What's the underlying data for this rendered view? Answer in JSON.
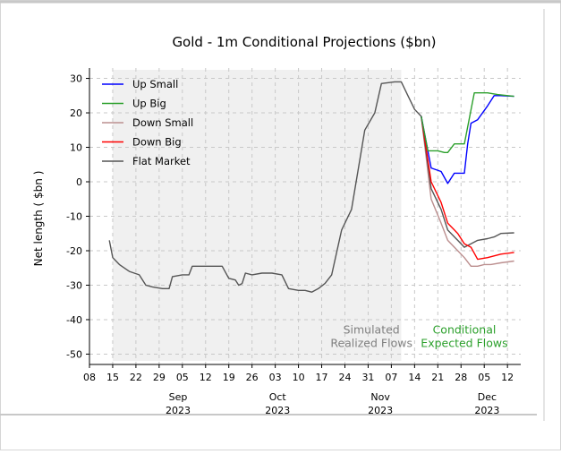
{
  "chart_data": {
    "type": "line",
    "title": "Gold - 1m Conditional Projections ($bn)",
    "ylabel": "Net length ( $bn )",
    "ylim": [
      -53,
      33
    ],
    "yticks": [
      30,
      20,
      10,
      0,
      -10,
      -20,
      -30,
      -40,
      -50
    ],
    "xlim": [
      "2023-08-08",
      "2023-12-16"
    ],
    "grid": true,
    "legend_position": "top-left",
    "x_tick_dates": [
      "2023-08-08",
      "2023-08-15",
      "2023-08-22",
      "2023-08-29",
      "2023-09-05",
      "2023-09-12",
      "2023-09-19",
      "2023-09-26",
      "2023-10-03",
      "2023-10-10",
      "2023-10-17",
      "2023-10-24",
      "2023-10-31",
      "2023-11-07",
      "2023-11-14",
      "2023-11-21",
      "2023-11-28",
      "2023-12-05",
      "2023-12-12"
    ],
    "x_tick_labels": [
      "08",
      "15",
      "22",
      "29",
      "05",
      "12",
      "19",
      "26",
      "03",
      "10",
      "17",
      "24",
      "31",
      "07",
      "14",
      "21",
      "28",
      "05",
      "12"
    ],
    "month_labels": [
      {
        "date": "2023-09-01",
        "month": "Sep",
        "year": "2023"
      },
      {
        "date": "2023-10-01",
        "month": "Oct",
        "year": "2023"
      },
      {
        "date": "2023-11-01",
        "month": "Nov",
        "year": "2023"
      },
      {
        "date": "2023-12-01",
        "month": "Dec",
        "year": "2023"
      }
    ],
    "realized_region": {
      "start": "2023-08-15",
      "end": "2023-11-10",
      "color": "#f0f0f0"
    },
    "annotations": [
      {
        "text_lines": [
          "Simulated",
          "Realized Flows"
        ],
        "date": "2023-11-01",
        "y": -44,
        "color": "#808080"
      },
      {
        "text_lines": [
          "Conditional",
          "Expected Flows"
        ],
        "date": "2023-11-29",
        "y": -44,
        "color": "#2ca02c"
      }
    ],
    "historical": {
      "name": "Flat Market",
      "color": "#555555",
      "points": [
        [
          "2023-08-14",
          -17
        ],
        [
          "2023-08-15",
          -22
        ],
        [
          "2023-08-17",
          -24
        ],
        [
          "2023-08-20",
          -26
        ],
        [
          "2023-08-23",
          -27
        ],
        [
          "2023-08-25",
          -30
        ],
        [
          "2023-08-27",
          -30.5
        ],
        [
          "2023-08-30",
          -31
        ],
        [
          "2023-09-01",
          -31
        ],
        [
          "2023-09-02",
          -27.5
        ],
        [
          "2023-09-05",
          -27
        ],
        [
          "2023-09-07",
          -27
        ],
        [
          "2023-09-08",
          -24.5
        ],
        [
          "2023-09-11",
          -24.5
        ],
        [
          "2023-09-14",
          -24.5
        ],
        [
          "2023-09-17",
          -24.5
        ],
        [
          "2023-09-19",
          -28
        ],
        [
          "2023-09-21",
          -28.5
        ],
        [
          "2023-09-22",
          -30
        ],
        [
          "2023-09-23",
          -29.5
        ],
        [
          "2023-09-24",
          -26.5
        ],
        [
          "2023-09-26",
          -27
        ],
        [
          "2023-09-29",
          -26.5
        ],
        [
          "2023-10-02",
          -26.5
        ],
        [
          "2023-10-05",
          -27
        ],
        [
          "2023-10-07",
          -31
        ],
        [
          "2023-10-10",
          -31.5
        ],
        [
          "2023-10-12",
          -31.5
        ],
        [
          "2023-10-14",
          -32
        ],
        [
          "2023-10-16",
          -31
        ],
        [
          "2023-10-18",
          -29.5
        ],
        [
          "2023-10-20",
          -27
        ],
        [
          "2023-10-23",
          -14
        ],
        [
          "2023-10-26",
          -8
        ],
        [
          "2023-10-30",
          15
        ],
        [
          "2023-11-02",
          20
        ],
        [
          "2023-11-04",
          28.5
        ],
        [
          "2023-11-08",
          29
        ],
        [
          "2023-11-10",
          29
        ],
        [
          "2023-11-12",
          25
        ],
        [
          "2023-11-14",
          21
        ],
        [
          "2023-11-16",
          19
        ]
      ]
    },
    "series": [
      {
        "name": "Up Small",
        "color": "#0000ff",
        "points": [
          [
            "2023-11-16",
            19
          ],
          [
            "2023-11-19",
            4
          ],
          [
            "2023-11-22",
            3
          ],
          [
            "2023-11-24",
            -0.5
          ],
          [
            "2023-11-26",
            2.5
          ],
          [
            "2023-11-29",
            2.5
          ],
          [
            "2023-11-30",
            11
          ],
          [
            "2023-12-01",
            17
          ],
          [
            "2023-12-03",
            18
          ],
          [
            "2023-12-06",
            22
          ],
          [
            "2023-12-08",
            25
          ],
          [
            "2023-12-10",
            25
          ],
          [
            "2023-12-14",
            24.8
          ]
        ]
      },
      {
        "name": "Up Big",
        "color": "#2ca02c",
        "points": [
          [
            "2023-11-16",
            19
          ],
          [
            "2023-11-18",
            9
          ],
          [
            "2023-11-21",
            9
          ],
          [
            "2023-11-23",
            8.5
          ],
          [
            "2023-11-24",
            8.5
          ],
          [
            "2023-11-26",
            11
          ],
          [
            "2023-11-29",
            11
          ],
          [
            "2023-12-02",
            25.8
          ],
          [
            "2023-12-06",
            25.8
          ],
          [
            "2023-12-09",
            25.3
          ],
          [
            "2023-12-14",
            24.8
          ]
        ]
      },
      {
        "name": "Down Small",
        "color": "#bc8f8f",
        "points": [
          [
            "2023-11-16",
            19
          ],
          [
            "2023-11-19",
            -5
          ],
          [
            "2023-11-22",
            -12
          ],
          [
            "2023-11-24",
            -17
          ],
          [
            "2023-11-27",
            -20
          ],
          [
            "2023-11-29",
            -22
          ],
          [
            "2023-12-01",
            -24.5
          ],
          [
            "2023-12-03",
            -24.5
          ],
          [
            "2023-12-05",
            -24
          ],
          [
            "2023-12-07",
            -24
          ],
          [
            "2023-12-10",
            -23.5
          ],
          [
            "2023-12-14",
            -23
          ]
        ]
      },
      {
        "name": "Down Big",
        "color": "#ff0000",
        "points": [
          [
            "2023-11-16",
            19
          ],
          [
            "2023-11-19",
            0
          ],
          [
            "2023-11-22",
            -6
          ],
          [
            "2023-11-24",
            -12
          ],
          [
            "2023-11-27",
            -15
          ],
          [
            "2023-11-29",
            -18
          ],
          [
            "2023-12-01",
            -19
          ],
          [
            "2023-12-03",
            -22.5
          ],
          [
            "2023-12-06",
            -22
          ],
          [
            "2023-12-10",
            -21
          ],
          [
            "2023-12-14",
            -20.5
          ]
        ]
      },
      {
        "name": "Flat Market",
        "color": "#555555",
        "points": [
          [
            "2023-11-16",
            19
          ],
          [
            "2023-11-19",
            -2
          ],
          [
            "2023-11-22",
            -8
          ],
          [
            "2023-11-24",
            -14
          ],
          [
            "2023-11-27",
            -17
          ],
          [
            "2023-11-29",
            -19
          ],
          [
            "2023-12-01",
            -18
          ],
          [
            "2023-12-03",
            -17
          ],
          [
            "2023-12-06",
            -16.5
          ],
          [
            "2023-12-08",
            -16
          ],
          [
            "2023-12-10",
            -15
          ],
          [
            "2023-12-14",
            -14.8
          ]
        ]
      }
    ],
    "legend": [
      {
        "name": "Up Small",
        "color": "#0000ff"
      },
      {
        "name": "Up Big",
        "color": "#2ca02c"
      },
      {
        "name": "Down Small",
        "color": "#bc8f8f"
      },
      {
        "name": "Down Big",
        "color": "#ff0000"
      },
      {
        "name": "Flat Market",
        "color": "#555555"
      }
    ]
  }
}
